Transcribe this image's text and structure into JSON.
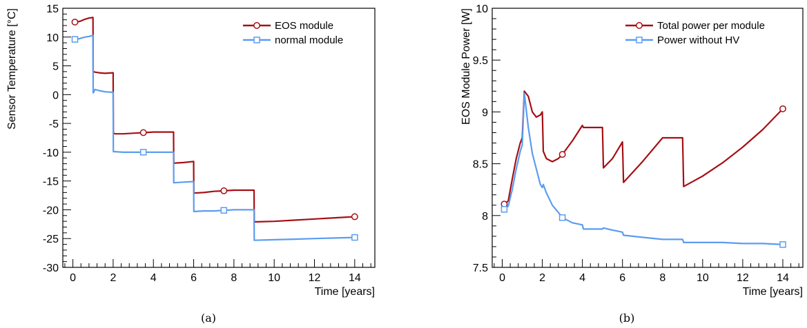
{
  "chart_data": [
    {
      "type": "line",
      "caption": "(a)",
      "xlabel": "Time [years]",
      "ylabel": "Sensor Temperature [°C]",
      "xlim": [
        -0.5,
        15
      ],
      "ylim": [
        -30,
        15
      ],
      "xticks": [
        0,
        2,
        4,
        6,
        8,
        10,
        12,
        14
      ],
      "yticks": [
        -30,
        -25,
        -20,
        -15,
        -10,
        -5,
        0,
        5,
        10,
        15
      ],
      "legend": "top-right",
      "series": [
        {
          "name": "EOS module",
          "color": "#a50f15",
          "marker": "circle",
          "x": [
            0.1,
            0.2,
            0.4,
            0.6,
            0.8,
            1.0,
            1.01,
            1.1,
            1.3,
            1.6,
            2.0,
            2.01,
            2.1,
            2.5,
            3.0,
            3.5,
            4.0,
            4.5,
            5.0,
            5.01,
            5.5,
            6.0,
            6.01,
            6.5,
            7.0,
            7.5,
            8.0,
            8.5,
            9.0,
            9.01,
            10,
            11,
            12,
            13,
            14
          ],
          "y": [
            12.6,
            12.6,
            12.8,
            13.1,
            13.3,
            13.4,
            4.0,
            3.9,
            3.8,
            3.7,
            3.8,
            -6.7,
            -6.8,
            -6.8,
            -6.7,
            -6.6,
            -6.5,
            -6.5,
            -6.5,
            -11.9,
            -11.8,
            -11.6,
            -17.1,
            -17.0,
            -16.8,
            -16.7,
            -16.6,
            -16.6,
            -16.6,
            -22.1,
            -22.0,
            -21.8,
            -21.6,
            -21.4,
            -21.2
          ],
          "markers_at": [
            0.1,
            3.5,
            7.5,
            14
          ]
        },
        {
          "name": "normal module",
          "color": "#5b9cf0",
          "marker": "square",
          "x": [
            0.1,
            0.2,
            0.4,
            0.6,
            0.8,
            1.0,
            1.01,
            1.1,
            1.3,
            1.6,
            2.0,
            2.01,
            2.1,
            2.5,
            3.0,
            3.5,
            4.0,
            4.5,
            5.0,
            5.01,
            5.5,
            6.0,
            6.01,
            6.5,
            7.0,
            7.5,
            8.0,
            8.5,
            9.0,
            9.01,
            10,
            11,
            12,
            13,
            14
          ],
          "y": [
            9.6,
            9.6,
            9.8,
            10.0,
            10.1,
            10.3,
            0.3,
            0.9,
            0.7,
            0.5,
            0.4,
            -9.9,
            -9.9,
            -10.0,
            -10.0,
            -10.0,
            -10.0,
            -10.0,
            -10.0,
            -15.3,
            -15.2,
            -15.1,
            -20.3,
            -20.2,
            -20.2,
            -20.1,
            -20.0,
            -20.0,
            -20.0,
            -25.3,
            -25.2,
            -25.1,
            -25.0,
            -24.9,
            -24.8
          ],
          "markers_at": [
            0.1,
            3.5,
            7.5,
            14
          ]
        }
      ]
    },
    {
      "type": "line",
      "caption": "(b)",
      "xlabel": "Time [years]",
      "ylabel": "EOS Module Power [W]",
      "xlim": [
        -0.5,
        15
      ],
      "ylim": [
        7.5,
        10
      ],
      "xticks": [
        0,
        2,
        4,
        6,
        8,
        10,
        12,
        14
      ],
      "yticks": [
        7.5,
        8,
        8.5,
        9,
        9.5,
        10
      ],
      "legend": "top-right",
      "series": [
        {
          "name": "Total power per module",
          "color": "#a50f15",
          "marker": "circle",
          "x": [
            0.1,
            0.3,
            0.5,
            0.7,
            0.9,
            1.0,
            1.1,
            1.3,
            1.5,
            1.7,
            1.9,
            2.0,
            2.05,
            2.2,
            2.5,
            2.8,
            3.0,
            3.5,
            4.0,
            4.05,
            4.5,
            5.0,
            5.05,
            5.5,
            6.0,
            6.05,
            7.0,
            8.0,
            9.0,
            9.05,
            10,
            11,
            12,
            13,
            14
          ],
          "y": [
            8.11,
            8.14,
            8.35,
            8.55,
            8.7,
            8.75,
            9.2,
            9.15,
            9.0,
            8.95,
            8.97,
            9.0,
            8.62,
            8.55,
            8.52,
            8.55,
            8.59,
            8.72,
            8.87,
            8.85,
            8.85,
            8.85,
            8.46,
            8.55,
            8.71,
            8.32,
            8.52,
            8.75,
            8.75,
            8.28,
            8.38,
            8.51,
            8.66,
            8.83,
            9.03
          ],
          "markers_at": [
            0.1,
            3.0,
            14
          ]
        },
        {
          "name": "Power without HV",
          "color": "#5b9cf0",
          "marker": "square",
          "x": [
            0.1,
            0.3,
            0.5,
            0.7,
            0.9,
            1.0,
            1.1,
            1.3,
            1.5,
            1.7,
            1.9,
            2.0,
            2.05,
            2.2,
            2.5,
            2.8,
            3.0,
            3.5,
            4.0,
            4.05,
            4.5,
            5.0,
            5.05,
            5.5,
            6.0,
            6.05,
            7.0,
            8.0,
            9.0,
            9.05,
            10,
            11,
            12,
            13,
            14
          ],
          "y": [
            8.06,
            8.09,
            8.25,
            8.45,
            8.62,
            8.68,
            9.18,
            8.85,
            8.6,
            8.45,
            8.3,
            8.27,
            8.3,
            8.22,
            8.1,
            8.03,
            7.98,
            7.93,
            7.91,
            7.87,
            7.87,
            7.87,
            7.88,
            7.86,
            7.84,
            7.81,
            7.79,
            7.77,
            7.77,
            7.74,
            7.74,
            7.74,
            7.73,
            7.73,
            7.72
          ],
          "markers_at": [
            0.1,
            3.0,
            14
          ]
        }
      ]
    }
  ]
}
